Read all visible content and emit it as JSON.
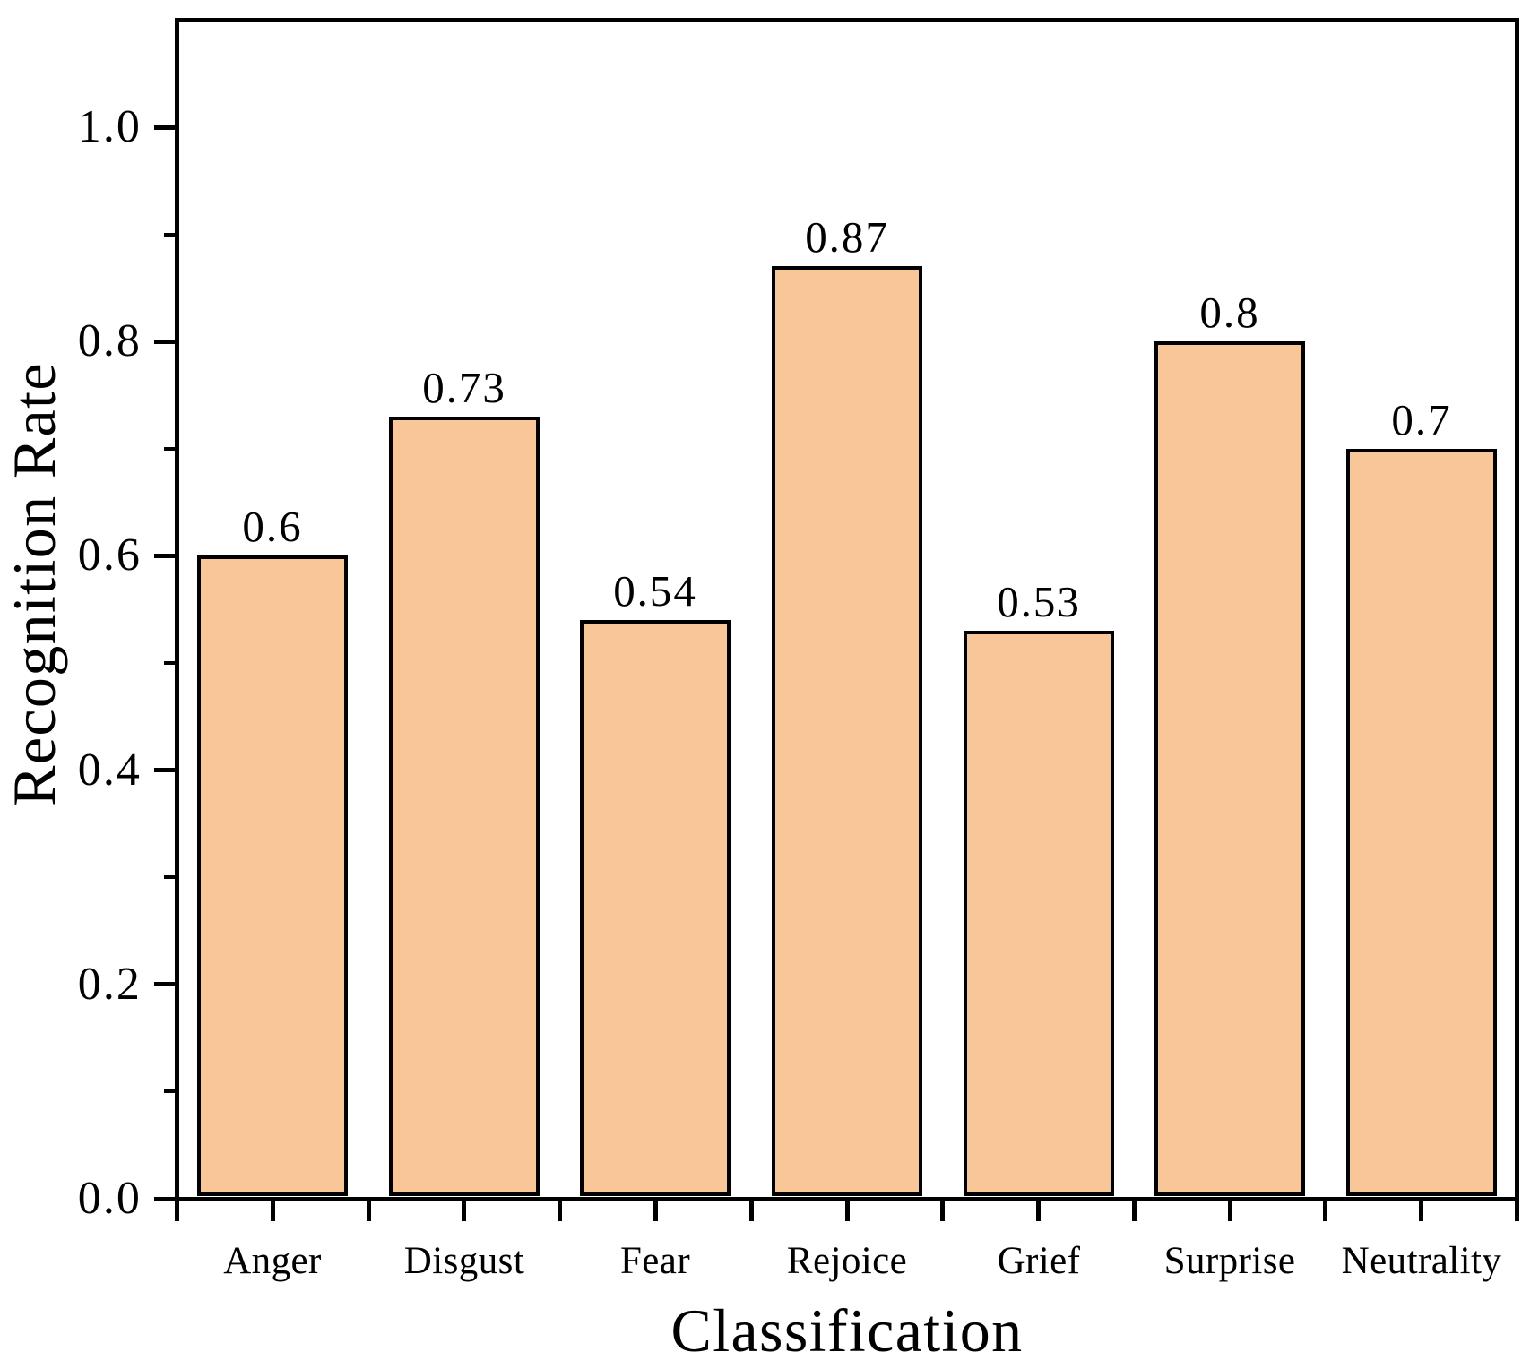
{
  "chart_data": {
    "type": "bar",
    "title": "",
    "categories": [
      "Anger",
      "Disgust",
      "Fear",
      "Rejoice",
      "Grief",
      "Surprise",
      "Neutrality"
    ],
    "values": [
      0.6,
      0.73,
      0.54,
      0.87,
      0.53,
      0.8,
      0.7
    ],
    "bar_value_labels": [
      "0.6",
      "0.73",
      "0.54",
      "0.87",
      "0.53",
      "0.8",
      "0.7"
    ],
    "xlabel": "Classification",
    "ylabel": "Recognition Rate",
    "ylim": [
      0,
      1.1
    ],
    "y_major_ticks": [
      0.0,
      0.2,
      0.4,
      0.6,
      0.8,
      1.0
    ],
    "y_tick_labels": [
      "0.0",
      "0.2",
      "0.4",
      "0.6",
      "0.8",
      "1.0"
    ],
    "y_minor_ticks": [
      0.1,
      0.3,
      0.5,
      0.7,
      0.9
    ],
    "x_tick_scheme": "ticks at each category center and each category boundary",
    "legend_position": "none",
    "grid": false,
    "colors": {
      "bar_fill": "#F8C697",
      "bar_border": "#000000",
      "axis": "#000000",
      "text": "#000000",
      "background": "#FFFFFF"
    }
  }
}
